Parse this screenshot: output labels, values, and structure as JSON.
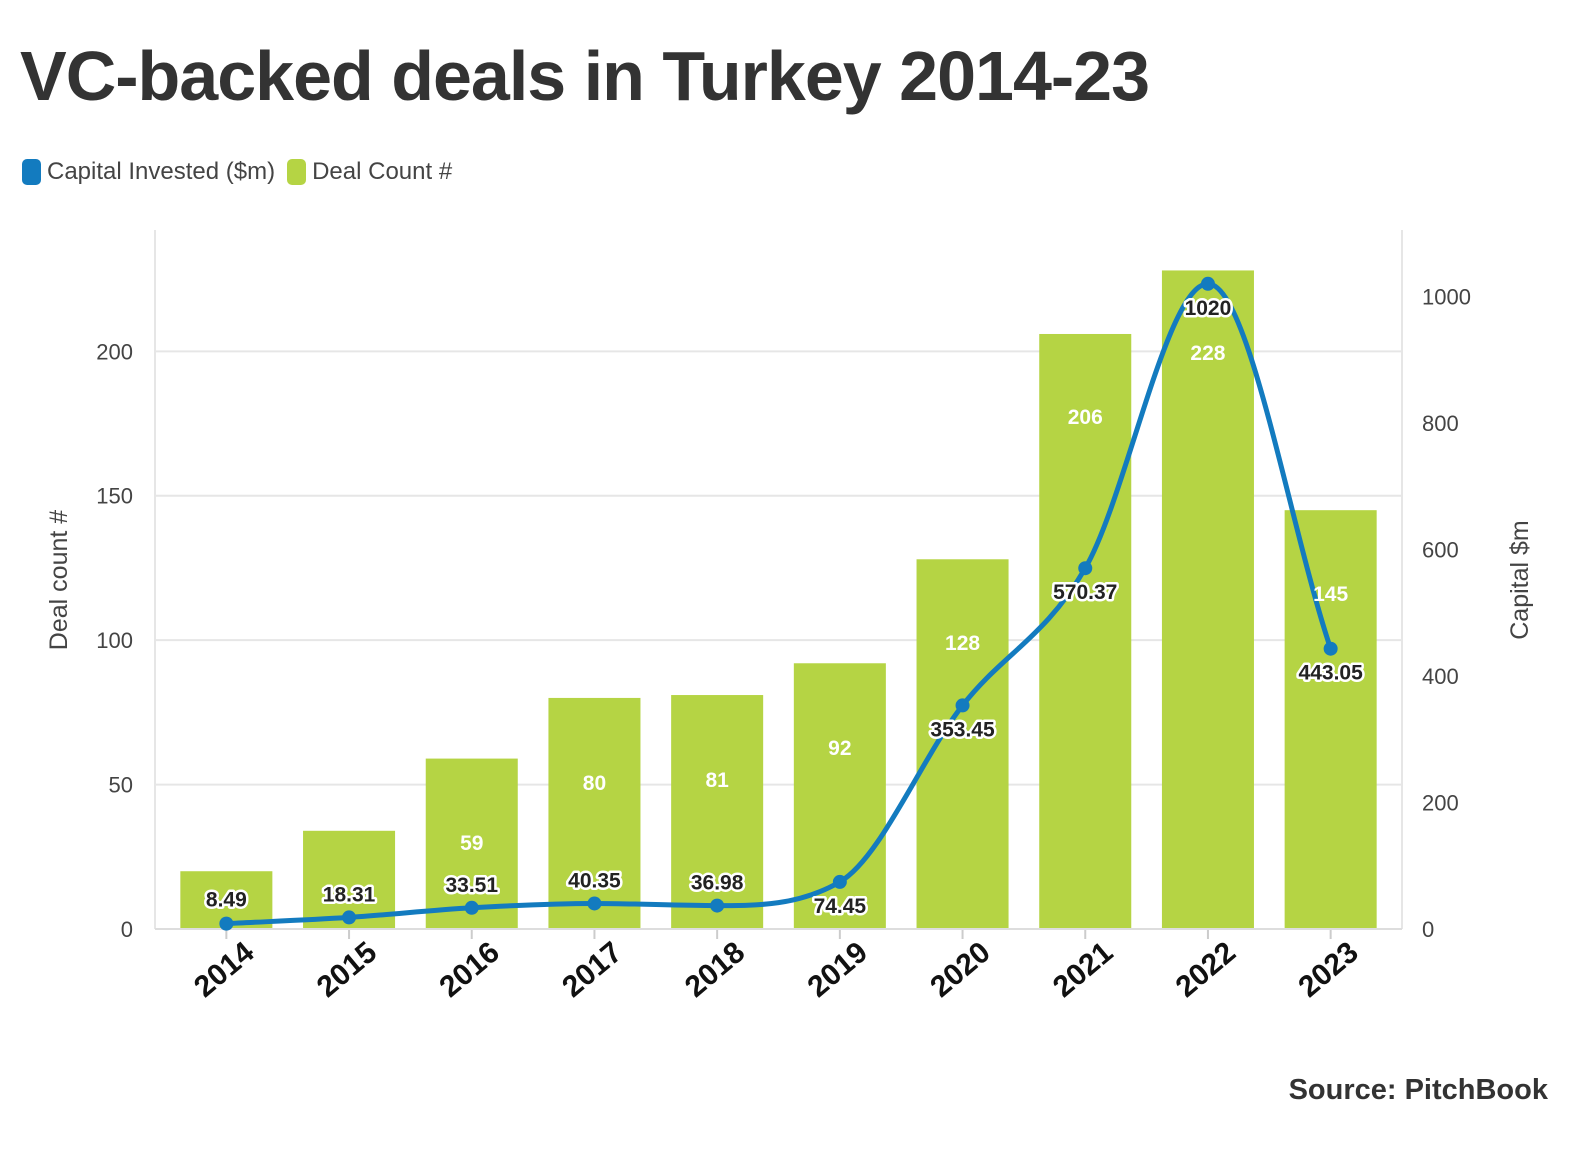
{
  "header": {
    "title": "VC-backed deals in Turkey 2014-23"
  },
  "legend": [
    {
      "label": "Capital Invested ($m)",
      "color": "#137bbf"
    },
    {
      "label": "Deal Count #",
      "color": "#b5d444"
    }
  ],
  "source": "Source: PitchBook",
  "chart_data": {
    "type": "bar",
    "categories": [
      "2014",
      "2015",
      "2016",
      "2017",
      "2018",
      "2019",
      "2020",
      "2021",
      "2022",
      "2023"
    ],
    "series": [
      {
        "name": "Deal Count #",
        "type": "bar",
        "axis": "left",
        "color": "#b5d444",
        "values": [
          20,
          34,
          59,
          80,
          81,
          92,
          128,
          206,
          228,
          145
        ],
        "labels": [
          "",
          "",
          "59",
          "80",
          "81",
          "92",
          "128",
          "206",
          "228",
          "145"
        ]
      },
      {
        "name": "Capital Invested ($m)",
        "type": "line",
        "axis": "right",
        "color": "#137bbf",
        "values": [
          8.49,
          18.31,
          33.51,
          40.35,
          36.98,
          74.45,
          353.45,
          570.37,
          1020,
          443.05
        ],
        "labels": [
          "8.49",
          "18.31",
          "33.51",
          "40.35",
          "36.98",
          "74.45",
          "353.45",
          "570.37",
          "1020",
          "443.05"
        ]
      }
    ],
    "y_left": {
      "label": "Deal count #",
      "ticks": [
        "0",
        "50",
        "100",
        "150",
        "200"
      ],
      "ylim": [
        0,
        242
      ]
    },
    "y_right": {
      "label": "Capital $m",
      "ticks": [
        "0",
        "200",
        "400",
        "600",
        "800",
        "1000"
      ],
      "ylim": [
        0,
        1105
      ]
    },
    "grid": true,
    "legend_position": "top-left"
  }
}
